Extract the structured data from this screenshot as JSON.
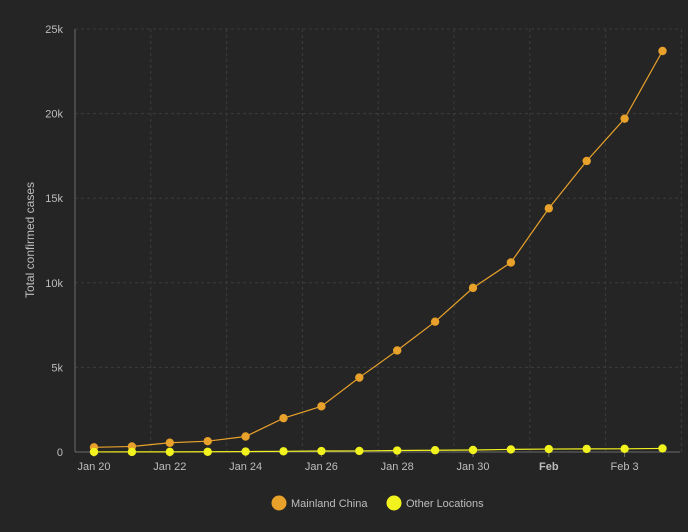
{
  "chart_data": {
    "type": "line",
    "ylabel": "Total confirmed cases",
    "ylim": [
      0,
      25000
    ],
    "yticks": [
      0,
      5000,
      10000,
      15000,
      20000,
      25000
    ],
    "ytick_labels": [
      "0",
      "5k",
      "10k",
      "15k",
      "20k",
      "25k"
    ],
    "x_dates": [
      "2020-01-20",
      "2020-01-21",
      "2020-01-22",
      "2020-01-23",
      "2020-01-24",
      "2020-01-25",
      "2020-01-26",
      "2020-01-27",
      "2020-01-28",
      "2020-01-29",
      "2020-01-30",
      "2020-01-31",
      "2020-02-01",
      "2020-02-02",
      "2020-02-03",
      "2020-02-04"
    ],
    "xtick_labels": [
      {
        "date": "2020-01-20",
        "label": "Jan 20",
        "bold": false
      },
      {
        "date": "2020-01-22",
        "label": "Jan 22",
        "bold": false
      },
      {
        "date": "2020-01-24",
        "label": "Jan 24",
        "bold": false
      },
      {
        "date": "2020-01-26",
        "label": "Jan 26",
        "bold": false
      },
      {
        "date": "2020-01-28",
        "label": "Jan 28",
        "bold": false
      },
      {
        "date": "2020-01-30",
        "label": "Jan 30",
        "bold": false
      },
      {
        "date": "2020-02-01",
        "label": "Feb",
        "bold": true
      },
      {
        "date": "2020-02-03",
        "label": "Feb 3",
        "bold": false
      }
    ],
    "grid": true,
    "legend_position": "bottom-center",
    "series": [
      {
        "name": "Mainland China",
        "color": "#e8a12a",
        "values": [
          278,
          326,
          547,
          639,
          916,
          2000,
          2700,
          4400,
          6000,
          7700,
          9700,
          11200,
          14400,
          17200,
          19700,
          23700
        ]
      },
      {
        "name": "Other Locations",
        "color": "#f2f21e",
        "values": [
          4,
          6,
          8,
          14,
          25,
          40,
          57,
          64,
          87,
          105,
          118,
          153,
          173,
          183,
          188,
          212
        ]
      }
    ]
  },
  "colors": {
    "background": "#252525",
    "grid": "#3c3c3c",
    "axis": "#6a6a6a",
    "text": "#bdbdbd"
  }
}
